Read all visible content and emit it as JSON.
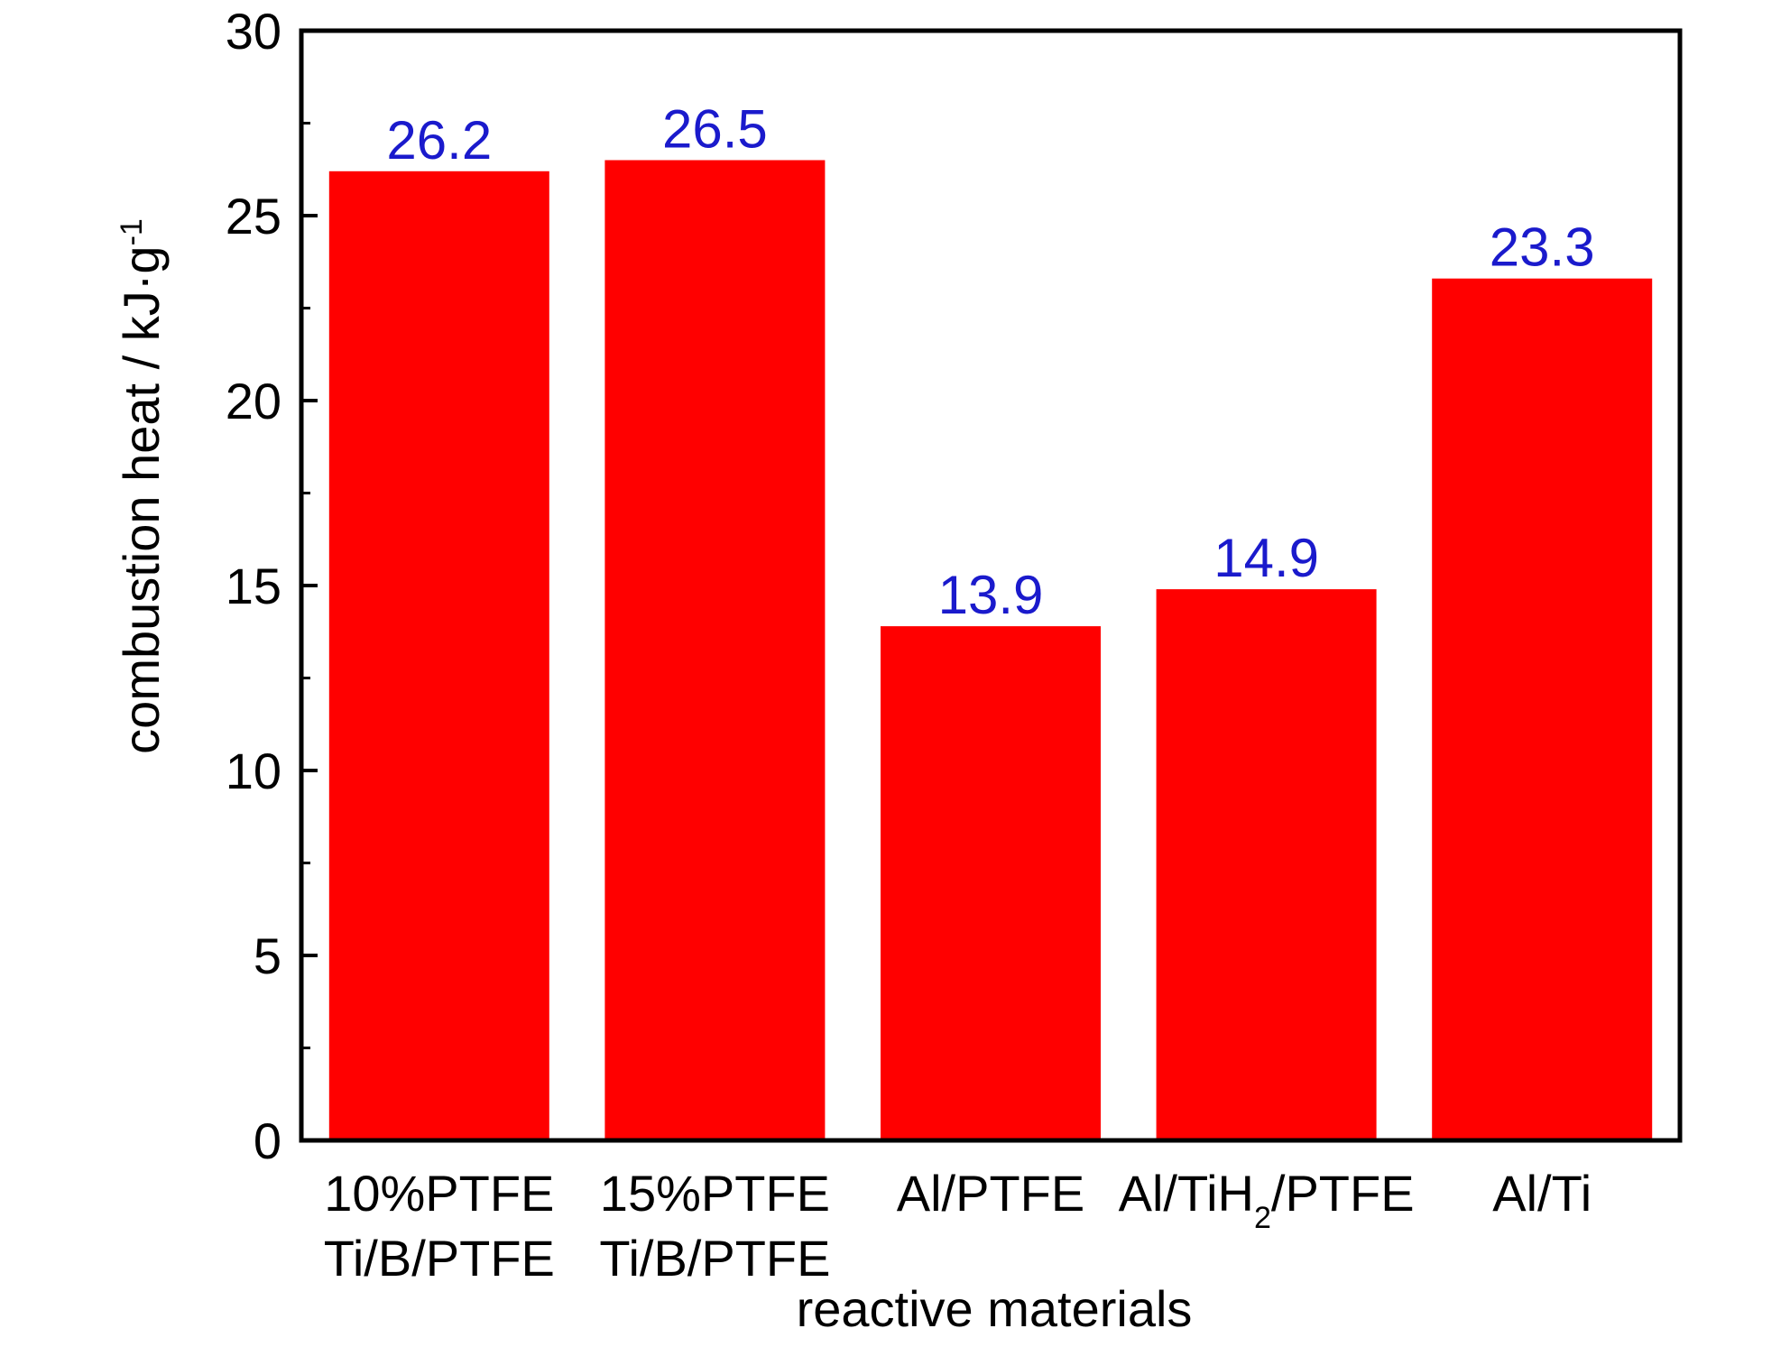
{
  "chart_data": {
    "type": "bar",
    "title": "",
    "xlabel": "reactive materials",
    "ylabel": "combustion heat / kJ·g",
    "ylabel_superscript": "-1",
    "ylim": [
      0,
      30
    ],
    "yticks": [
      0,
      5,
      10,
      15,
      20,
      25,
      30
    ],
    "y_minor_tick_step": 2.5,
    "categories": [
      "10%PTFE Ti/B/PTFE",
      "15%PTFE Ti/B/PTFE",
      "Al/PTFE",
      "Al/TiH2/PTFE",
      "Al/Ti"
    ],
    "category_labels": [
      {
        "lines": [
          "10%PTFE",
          "Ti/B/PTFE"
        ]
      },
      {
        "lines": [
          "15%PTFE",
          "Ti/B/PTFE"
        ]
      },
      {
        "lines": [
          "Al/PTFE"
        ]
      },
      {
        "parts": [
          {
            "text": "Al/TiH",
            "sub": false
          },
          {
            "text": "2",
            "sub": true
          },
          {
            "text": "/PTFE",
            "sub": false
          }
        ]
      },
      {
        "lines": [
          "Al/Ti"
        ]
      }
    ],
    "values": [
      26.2,
      26.5,
      13.9,
      14.9,
      23.3
    ],
    "data_labels": [
      "26.2",
      "26.5",
      "13.9",
      "14.9",
      "23.3"
    ],
    "grid": false,
    "legend": "none",
    "colors": {
      "bar": "#ff0000",
      "data_label": "#1a1acc",
      "axis": "#000000"
    }
  }
}
